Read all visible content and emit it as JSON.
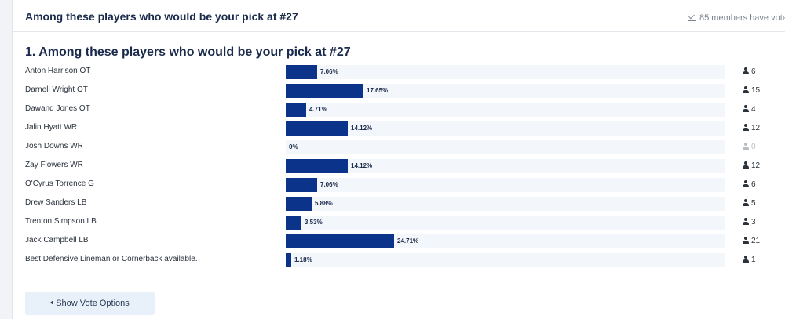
{
  "header": {
    "title": "Among these players who would be your pick at #27",
    "members_text": "85 members have vote"
  },
  "question": {
    "title": "1. Among these players who would be your pick at #27"
  },
  "colors": {
    "bar": "#0b3389",
    "track": "#f3f6fa"
  },
  "options": [
    {
      "label": "Anton Harrison OT",
      "percent_text": "7.06%",
      "percent": 7.06,
      "count": "6"
    },
    {
      "label": "Darnell Wright OT",
      "percent_text": "17.65%",
      "percent": 17.65,
      "count": "15"
    },
    {
      "label": "Dawand Jones OT",
      "percent_text": "4.71%",
      "percent": 4.71,
      "count": "4"
    },
    {
      "label": "Jalin Hyatt WR",
      "percent_text": "14.12%",
      "percent": 14.12,
      "count": "12"
    },
    {
      "label": "Josh Downs WR",
      "percent_text": "0%",
      "percent": 0,
      "count": "0"
    },
    {
      "label": "Zay Flowers WR",
      "percent_text": "14.12%",
      "percent": 14.12,
      "count": "12"
    },
    {
      "label": "O'Cyrus Torrence G",
      "percent_text": "7.06%",
      "percent": 7.06,
      "count": "6"
    },
    {
      "label": "Drew Sanders LB",
      "percent_text": "5.88%",
      "percent": 5.88,
      "count": "5"
    },
    {
      "label": "Trenton Simpson LB",
      "percent_text": "3.53%",
      "percent": 3.53,
      "count": "3"
    },
    {
      "label": "Jack Campbell LB",
      "percent_text": "24.71%",
      "percent": 24.71,
      "count": "21"
    },
    {
      "label": "Best Defensive Lineman or Cornerback available.",
      "percent_text": "1.18%",
      "percent": 1.18,
      "count": "1"
    }
  ],
  "footer": {
    "button_label": "Show Vote Options"
  }
}
